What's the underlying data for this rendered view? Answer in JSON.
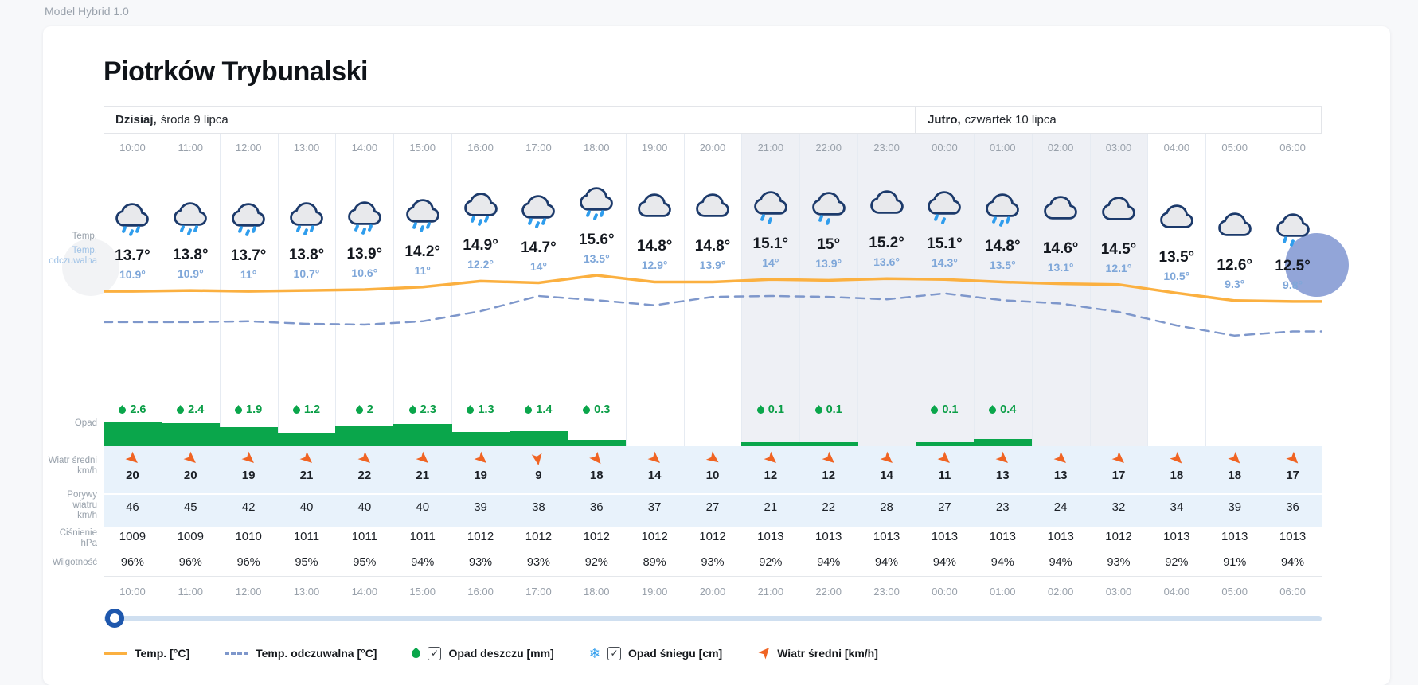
{
  "app": {
    "model_label": "Model Hybrid 1.0",
    "title": "Piotrków Trybunalski"
  },
  "days": [
    {
      "name": "Dzisiaj,",
      "date": "środa 9 lipca",
      "col_start": 0,
      "col_span": 14
    },
    {
      "name": "Jutro,",
      "date": "czwartek 10 lipca",
      "col_start": 14,
      "col_span": 7
    }
  ],
  "columns": {
    "hours": [
      "10:00",
      "11:00",
      "12:00",
      "13:00",
      "14:00",
      "15:00",
      "16:00",
      "17:00",
      "18:00",
      "19:00",
      "20:00",
      "21:00",
      "22:00",
      "23:00",
      "00:00",
      "01:00",
      "02:00",
      "03:00",
      "04:00",
      "05:00",
      "06:00"
    ],
    "night_start_index": 11,
    "night_end_index": 17,
    "icons": [
      "rain",
      "rain",
      "rain",
      "rain",
      "rain",
      "rain",
      "rain",
      "rain",
      "rain",
      "cloud",
      "cloud",
      "rain-light",
      "rain-light",
      "cloud",
      "rain-light",
      "rain",
      "cloud",
      "cloud",
      "cloud",
      "cloud",
      "rain-light"
    ]
  },
  "chart_data": {
    "type": "line",
    "x": [
      "10:00",
      "11:00",
      "12:00",
      "13:00",
      "14:00",
      "15:00",
      "16:00",
      "17:00",
      "18:00",
      "19:00",
      "20:00",
      "21:00",
      "22:00",
      "23:00",
      "00:00",
      "01:00",
      "02:00",
      "03:00",
      "04:00",
      "05:00",
      "06:00"
    ],
    "series": [
      {
        "name": "Temp. [°C]",
        "color": "#fbb040",
        "style": "solid",
        "values": [
          13.7,
          13.8,
          13.7,
          13.8,
          13.9,
          14.2,
          14.9,
          14.7,
          15.6,
          14.8,
          14.8,
          15.1,
          15,
          15.2,
          15.1,
          14.8,
          14.6,
          14.5,
          13.5,
          12.6,
          12.5
        ]
      },
      {
        "name": "Temp. odczuwalna [°C]",
        "color": "#7e97cb",
        "style": "dashed",
        "values": [
          10.9,
          10.9,
          11,
          10.7,
          10.6,
          11,
          12.2,
          14,
          13.5,
          12.9,
          13.9,
          14,
          13.9,
          13.6,
          14.3,
          13.5,
          13.1,
          12.1,
          10.5,
          9.3,
          9.8
        ]
      }
    ],
    "precipitation_mm": [
      2.6,
      2.4,
      1.9,
      1.2,
      2,
      2.3,
      1.3,
      1.4,
      0.3,
      null,
      null,
      0.1,
      0.1,
      null,
      0.1,
      0.4,
      null,
      null,
      null,
      null,
      null
    ],
    "wind_avg_kmh": [
      20,
      20,
      19,
      21,
      22,
      21,
      19,
      9,
      18,
      14,
      10,
      12,
      12,
      14,
      11,
      13,
      13,
      17,
      18,
      18,
      17
    ],
    "wind_rotation_deg": [
      90,
      90,
      90,
      90,
      90,
      90,
      90,
      130,
      100,
      90,
      85,
      90,
      90,
      90,
      90,
      90,
      90,
      90,
      95,
      95,
      95
    ],
    "wind_gusts_kmh": [
      46,
      45,
      42,
      40,
      40,
      40,
      39,
      38,
      36,
      37,
      27,
      21,
      22,
      28,
      27,
      23,
      24,
      32,
      34,
      39,
      36
    ],
    "pressure_hpa": [
      1009,
      1009,
      1010,
      1011,
      1011,
      1011,
      1012,
      1012,
      1012,
      1012,
      1012,
      1013,
      1013,
      1013,
      1013,
      1013,
      1013,
      1012,
      1013,
      1013,
      1013
    ],
    "humidity_pct": [
      96,
      96,
      96,
      95,
      95,
      94,
      93,
      93,
      92,
      89,
      93,
      92,
      94,
      94,
      94,
      94,
      94,
      93,
      92,
      91,
      94
    ]
  },
  "row_labels": {
    "temp": [
      "Temp."
    ],
    "feels": [
      "Temp.",
      "odczuwalna"
    ],
    "precip": [
      "Opad"
    ],
    "wind": [
      "Wiatr średni",
      "km/h"
    ],
    "gusts": [
      "Porywy",
      "wiatru",
      "km/h"
    ],
    "pressure": [
      "Ciśnienie",
      "hPa"
    ],
    "humidity": [
      "Wilgotność"
    ]
  },
  "legend": {
    "items": [
      {
        "icon": "temp-line-swatch",
        "label": "Temp. [°C]",
        "checkbox": false
      },
      {
        "icon": "feels-line-swatch",
        "label": "Temp. odczuwalna [°C]",
        "checkbox": false
      },
      {
        "icon": "rain-drop-icon",
        "label": "Opad deszczu [mm]",
        "checkbox": true,
        "checked": true
      },
      {
        "icon": "snowflake-icon",
        "label": "Opad śniegu [cm]",
        "checkbox": true,
        "checked": true
      },
      {
        "icon": "wind-arrow-icon",
        "label": "Wiatr średni [km/h]",
        "checkbox": false
      }
    ],
    "check_glyph": "✓",
    "snowflake_glyph": "❄"
  },
  "colors": {
    "temp_line": "#fbb040",
    "feels_line": "#7e97cb",
    "precip_green": "#0aa64b",
    "wind_arrow_orange": "#f06423",
    "night_bg": "#eef0f5",
    "row_blue_bg": "#e8f2fb"
  },
  "slider": {
    "position_pct": 1
  }
}
